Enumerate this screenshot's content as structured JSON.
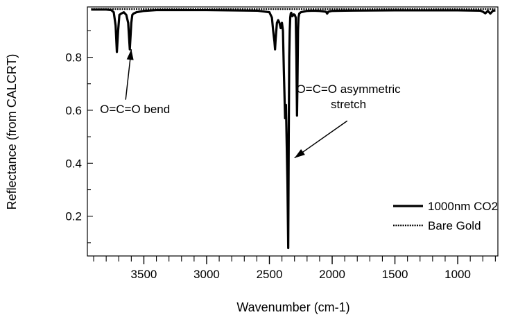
{
  "chart_data": {
    "type": "line",
    "xlabel": "Wavenumber (cm-1)",
    "ylabel": "Reflectance (from CALCRT)",
    "xlim": [
      3950,
      680
    ],
    "ylim": [
      0.05,
      0.99
    ],
    "x_reversed": true,
    "x_ticks": [
      3500,
      3000,
      2500,
      2000,
      1500,
      1000
    ],
    "y_ticks": [
      0.2,
      0.4,
      0.6,
      0.8
    ],
    "legend_position": "bottom-right",
    "series": [
      {
        "name": "1000nm CO2",
        "style": "solid",
        "color": "#000000",
        "x": [
          3920,
          3800,
          3760,
          3740,
          3725,
          3715,
          3705,
          3695,
          3680,
          3660,
          3640,
          3625,
          3612,
          3600,
          3592,
          3582,
          3560,
          3500,
          3400,
          3000,
          2600,
          2500,
          2480,
          2470,
          2460,
          2455,
          2450,
          2445,
          2440,
          2430,
          2420,
          2410,
          2400,
          2392,
          2385,
          2375,
          2368,
          2362,
          2356,
          2350,
          2346,
          2342,
          2338,
          2334,
          2330,
          2326,
          2322,
          2318,
          2312,
          2305,
          2298,
          2290,
          2285,
          2280,
          2276,
          2272,
          2268,
          2262,
          2250,
          2200,
          2150,
          2100,
          2050,
          2040,
          2030,
          2000,
          1900,
          1500,
          1000,
          820,
          800,
          780,
          760,
          740,
          720,
          700
        ],
        "values": [
          0.98,
          0.98,
          0.978,
          0.97,
          0.92,
          0.82,
          0.9,
          0.96,
          0.965,
          0.97,
          0.96,
          0.93,
          0.83,
          0.93,
          0.96,
          0.965,
          0.97,
          0.975,
          0.978,
          0.978,
          0.976,
          0.97,
          0.95,
          0.9,
          0.86,
          0.83,
          0.87,
          0.9,
          0.93,
          0.94,
          0.93,
          0.91,
          0.93,
          0.9,
          0.75,
          0.57,
          0.62,
          0.47,
          0.32,
          0.08,
          0.5,
          0.8,
          0.9,
          0.95,
          0.965,
          0.968,
          0.962,
          0.955,
          0.958,
          0.962,
          0.96,
          0.95,
          0.8,
          0.58,
          0.72,
          0.9,
          0.95,
          0.965,
          0.97,
          0.975,
          0.976,
          0.975,
          0.972,
          0.965,
          0.972,
          0.975,
          0.976,
          0.977,
          0.977,
          0.976,
          0.972,
          0.966,
          0.975,
          0.965,
          0.975,
          0.977
        ]
      },
      {
        "name": "Bare Gold",
        "style": "dotted",
        "color": "#000000",
        "x": [
          3920,
          3500,
          3000,
          2500,
          2000,
          1500,
          1000,
          700
        ],
        "values": [
          0.982,
          0.982,
          0.982,
          0.982,
          0.982,
          0.982,
          0.982,
          0.982
        ]
      }
    ],
    "annotations": [
      {
        "lines": [
          "O=C=O bend"
        ],
        "text_x": 3850,
        "text_y": 0.59,
        "arrow_from": [
          3645,
          0.64
        ],
        "arrow_to": [
          3600,
          0.83
        ]
      },
      {
        "lines": [
          "O=C=O asymmetric",
          "stretch"
        ],
        "text_x": 1870,
        "text_y": 0.665,
        "arrow_from": [
          1880,
          0.56
        ],
        "arrow_to": [
          2300,
          0.42
        ]
      }
    ]
  }
}
